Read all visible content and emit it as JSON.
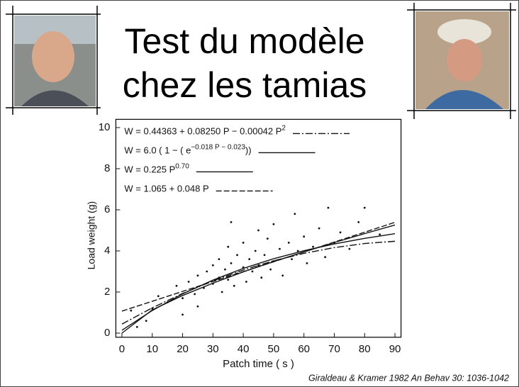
{
  "slide_title": [
    "Test du modèle",
    "chez les tamias"
  ],
  "citation": "Giraldeau & Kramer 1982  An Behav 30: 1036-1042",
  "chart_data": {
    "type": "scatter",
    "x_label": "Patch time ( s )",
    "y_label": "Load weight (g)",
    "xlim": [
      -2,
      92
    ],
    "ylim": [
      -0.2,
      10.4
    ],
    "xticks": [
      0,
      10,
      20,
      30,
      40,
      50,
      60,
      70,
      80,
      90
    ],
    "yticks": [
      0,
      2,
      4,
      6,
      8,
      10
    ],
    "points": {
      "color": "#111",
      "x": [
        8,
        10,
        12,
        15,
        18,
        20,
        22,
        24,
        25,
        27,
        28,
        30,
        30,
        32,
        32,
        33,
        34,
        35,
        35,
        36,
        37,
        38,
        38,
        40,
        40,
        41,
        42,
        43,
        44,
        45,
        45,
        46,
        47,
        48,
        49,
        50,
        50,
        52,
        53,
        55,
        56,
        57,
        58,
        60,
        61,
        63,
        65,
        67,
        70,
        72,
        75,
        78,
        80,
        85,
        36,
        25,
        20,
        5,
        3,
        68
      ],
      "y": [
        0.6,
        1.2,
        1.8,
        1.5,
        2.3,
        1.7,
        2.5,
        1.9,
        2.8,
        2.2,
        3.0,
        2.4,
        3.3,
        2.7,
        3.6,
        2.0,
        3.1,
        2.6,
        4.2,
        3.4,
        2.3,
        3.8,
        2.9,
        3.2,
        4.4,
        2.5,
        3.6,
        3.0,
        4.0,
        3.3,
        5.0,
        2.7,
        3.8,
        4.6,
        3.1,
        3.5,
        5.3,
        4.1,
        2.8,
        4.4,
        3.6,
        5.8,
        4.0,
        4.7,
        3.4,
        4.2,
        5.1,
        3.7,
        4.4,
        4.9,
        4.1,
        5.4,
        6.1,
        4.8,
        5.4,
        1.3,
        0.9,
        0.3,
        1.1,
        6.1
      ]
    },
    "x": [
      0,
      10,
      20,
      30,
      40,
      50,
      60,
      70,
      80,
      90
    ],
    "series": [
      {
        "name": "W = 0.44363 + 0.08250 P − 0.00042 P",
        "name_sup": "2",
        "color": "#111",
        "dash": "10 3 2 3",
        "values": [
          0.44,
          1.23,
          1.93,
          2.54,
          3.07,
          3.52,
          3.88,
          4.16,
          4.36,
          4.47
        ]
      },
      {
        "name": "W = 6.0 ( 1 − ( e",
        "name_sup": "−0.018 P − 0.023",
        "name_tail": "))",
        "color": "#111",
        "dash": "none",
        "values": [
          0.14,
          1.1,
          1.91,
          2.58,
          3.15,
          3.62,
          4.01,
          4.34,
          4.61,
          4.84
        ]
      },
      {
        "name": "W = 0.225 P",
        "name_sup": "0.70",
        "color": "#111",
        "dash": "none",
        "values": [
          0,
          1.13,
          1.83,
          2.43,
          2.98,
          3.48,
          3.95,
          4.41,
          4.84,
          5.26
        ]
      },
      {
        "name": "W = 1.065 + 0.048 P",
        "color": "#111",
        "dash": "8 3",
        "values": [
          1.07,
          1.55,
          2.03,
          2.51,
          2.99,
          3.47,
          3.95,
          4.43,
          4.91,
          5.39
        ]
      }
    ]
  }
}
